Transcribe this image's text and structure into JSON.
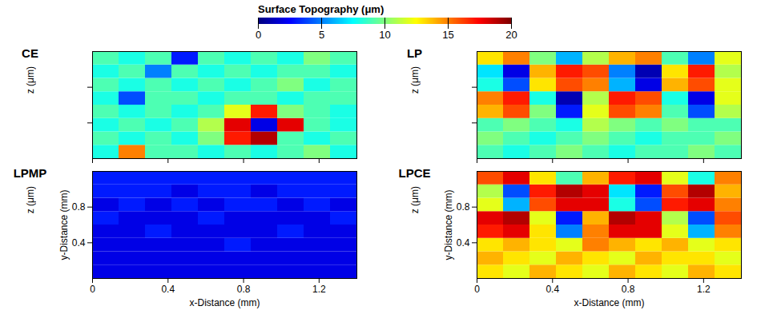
{
  "chart_data": [
    {
      "type": "heatmap",
      "title": "CE",
      "z_label": "z (μm)",
      "tick_labels": false,
      "xlim": [
        0,
        1.4
      ],
      "ylim": [
        0,
        1.2
      ],
      "xticks": [
        0,
        0.4,
        0.8,
        1.2
      ],
      "yticks": [
        0.4,
        0.8
      ],
      "x": [
        0.07,
        0.21,
        0.35,
        0.49,
        0.63,
        0.77,
        0.91,
        1.05,
        1.19,
        1.33
      ],
      "y": [
        0.075,
        0.225,
        0.375,
        0.525,
        0.675,
        0.825,
        0.975,
        1.125
      ],
      "z": [
        [
          8,
          15,
          9,
          9,
          8,
          9,
          8,
          9,
          10,
          8
        ],
        [
          9,
          8,
          9,
          8,
          10,
          17,
          19,
          9,
          8,
          9
        ],
        [
          8,
          9,
          8,
          9,
          11,
          18,
          2,
          18,
          9,
          8
        ],
        [
          9,
          8,
          9,
          8,
          9,
          12,
          17,
          10,
          9,
          8
        ],
        [
          8,
          4,
          9,
          9,
          8,
          9,
          9,
          8,
          9,
          9
        ],
        [
          9,
          8,
          9,
          8,
          9,
          8,
          9,
          10,
          8,
          9
        ],
        [
          8,
          9,
          5,
          9,
          8,
          9,
          8,
          9,
          9,
          8
        ],
        [
          9,
          8,
          9,
          3,
          9,
          8,
          9,
          8,
          10,
          9
        ]
      ]
    },
    {
      "type": "heatmap",
      "title": "LP",
      "z_label": "z (μm)",
      "tick_labels": false,
      "xlim": [
        0,
        1.4
      ],
      "ylim": [
        0,
        1.2
      ],
      "xticks": [
        0,
        0.4,
        0.8,
        1.2
      ],
      "yticks": [
        0.4,
        0.8
      ],
      "x": [
        0.07,
        0.21,
        0.35,
        0.49,
        0.63,
        0.77,
        0.91,
        1.05,
        1.19,
        1.33
      ],
      "y": [
        0.075,
        0.225,
        0.375,
        0.525,
        0.675,
        0.825,
        0.975,
        1.125
      ],
      "z": [
        [
          9,
          8,
          9,
          10,
          9,
          8,
          9,
          9,
          10,
          9
        ],
        [
          10,
          9,
          8,
          9,
          10,
          9,
          8,
          9,
          9,
          10
        ],
        [
          9,
          10,
          9,
          8,
          11,
          10,
          9,
          10,
          9,
          9
        ],
        [
          14,
          16,
          10,
          3,
          12,
          16,
          15,
          9,
          4,
          11
        ],
        [
          15,
          17,
          8,
          1,
          11,
          17,
          16,
          8,
          2,
          12
        ],
        [
          8,
          4,
          13,
          16,
          15,
          6,
          2,
          14,
          16,
          12
        ],
        [
          7,
          2,
          14,
          17,
          16,
          5,
          1,
          13,
          17,
          11
        ],
        [
          13,
          15,
          10,
          6,
          11,
          14,
          15,
          9,
          5,
          12
        ]
      ]
    },
    {
      "type": "heatmap",
      "title": "LPMP",
      "z_label": "z (μm)",
      "x_label": "x-Distance (mm)",
      "y_label": "y-Distance (mm)",
      "xlim": [
        0,
        1.4
      ],
      "ylim": [
        0,
        1.2
      ],
      "xticks": [
        0,
        0.4,
        0.8,
        1.2
      ],
      "yticks": [
        0.4,
        0.8
      ],
      "x": [
        0.07,
        0.21,
        0.35,
        0.49,
        0.63,
        0.77,
        0.91,
        1.05,
        1.19,
        1.33
      ],
      "y": [
        0.075,
        0.225,
        0.375,
        0.525,
        0.675,
        0.825,
        0.975,
        1.125
      ],
      "z": [
        [
          2,
          2,
          2,
          2,
          2,
          2,
          2,
          2,
          2,
          2
        ],
        [
          2,
          2,
          2,
          2,
          2,
          2,
          2,
          2,
          2,
          2
        ],
        [
          2,
          2,
          2,
          2,
          2,
          3,
          2,
          2,
          2,
          2
        ],
        [
          2,
          2,
          3,
          2,
          2,
          2,
          2,
          3,
          2,
          2
        ],
        [
          3,
          2,
          2,
          2,
          3,
          2,
          2,
          2,
          2,
          3
        ],
        [
          2,
          3,
          2,
          3,
          2,
          3,
          3,
          2,
          3,
          2
        ],
        [
          3,
          3,
          3,
          2,
          3,
          3,
          2,
          3,
          3,
          3
        ],
        [
          3,
          3,
          3,
          3,
          3,
          3,
          3,
          3,
          3,
          3
        ]
      ]
    },
    {
      "type": "heatmap",
      "title": "LPCE",
      "z_label": "z (μm)",
      "x_label": "x-Distance (mm)",
      "y_label": "y-Distance (mm)",
      "xlim": [
        0,
        1.4
      ],
      "ylim": [
        0,
        1.2
      ],
      "xticks": [
        0,
        0.4,
        0.8,
        1.2
      ],
      "yticks": [
        0.4,
        0.8
      ],
      "x": [
        0.07,
        0.21,
        0.35,
        0.49,
        0.63,
        0.77,
        0.91,
        1.05,
        1.19,
        1.33
      ],
      "y": [
        0.075,
        0.225,
        0.375,
        0.525,
        0.675,
        0.825,
        0.975,
        1.125
      ],
      "z": [
        [
          13,
          12,
          14,
          13,
          12,
          14,
          13,
          12,
          14,
          13
        ],
        [
          14,
          13,
          12,
          14,
          13,
          12,
          14,
          13,
          13,
          12
        ],
        [
          13,
          14,
          13,
          12,
          15,
          14,
          13,
          14,
          12,
          13
        ],
        [
          17,
          18,
          13,
          5,
          15,
          18,
          18,
          12,
          6,
          15
        ],
        [
          18,
          19,
          12,
          3,
          14,
          19,
          18,
          11,
          4,
          16
        ],
        [
          12,
          6,
          16,
          18,
          18,
          8,
          4,
          17,
          18,
          15
        ],
        [
          11,
          4,
          17,
          19,
          18,
          7,
          3,
          16,
          19,
          14
        ],
        [
          16,
          18,
          13,
          9,
          14,
          17,
          18,
          12,
          8,
          15
        ]
      ]
    }
  ],
  "colorbar": {
    "label": "Surface Topography (μm)",
    "range": [
      0,
      20
    ],
    "ticks": [
      0,
      5,
      10,
      15,
      20
    ]
  }
}
